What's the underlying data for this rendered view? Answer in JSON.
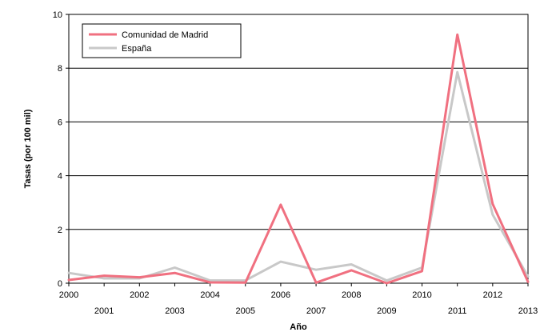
{
  "chart_data": {
    "type": "line",
    "xlabel": "Año",
    "ylabel": "Tasas (por 100 mil)",
    "x": [
      "2000",
      "2001",
      "2002",
      "2003",
      "2004",
      "2005",
      "2006",
      "2007",
      "2008",
      "2009",
      "2010",
      "2011",
      "2012",
      "2013"
    ],
    "ylim": [
      0,
      10
    ],
    "yticks": [
      0,
      2,
      4,
      6,
      8,
      10
    ],
    "grid": true,
    "legend_position": "top-left",
    "series": [
      {
        "name": "Comunidad de Madrid",
        "color": "#f07080",
        "values": [
          0.12,
          0.28,
          0.22,
          0.38,
          0.03,
          0.02,
          2.92,
          0.02,
          0.48,
          0.0,
          0.45,
          9.25,
          2.95,
          0.05
        ]
      },
      {
        "name": "España",
        "color": "#c8c8c8",
        "values": [
          0.38,
          0.18,
          0.18,
          0.58,
          0.1,
          0.1,
          0.8,
          0.5,
          0.7,
          0.1,
          0.58,
          7.85,
          2.55,
          0.25
        ]
      }
    ]
  }
}
